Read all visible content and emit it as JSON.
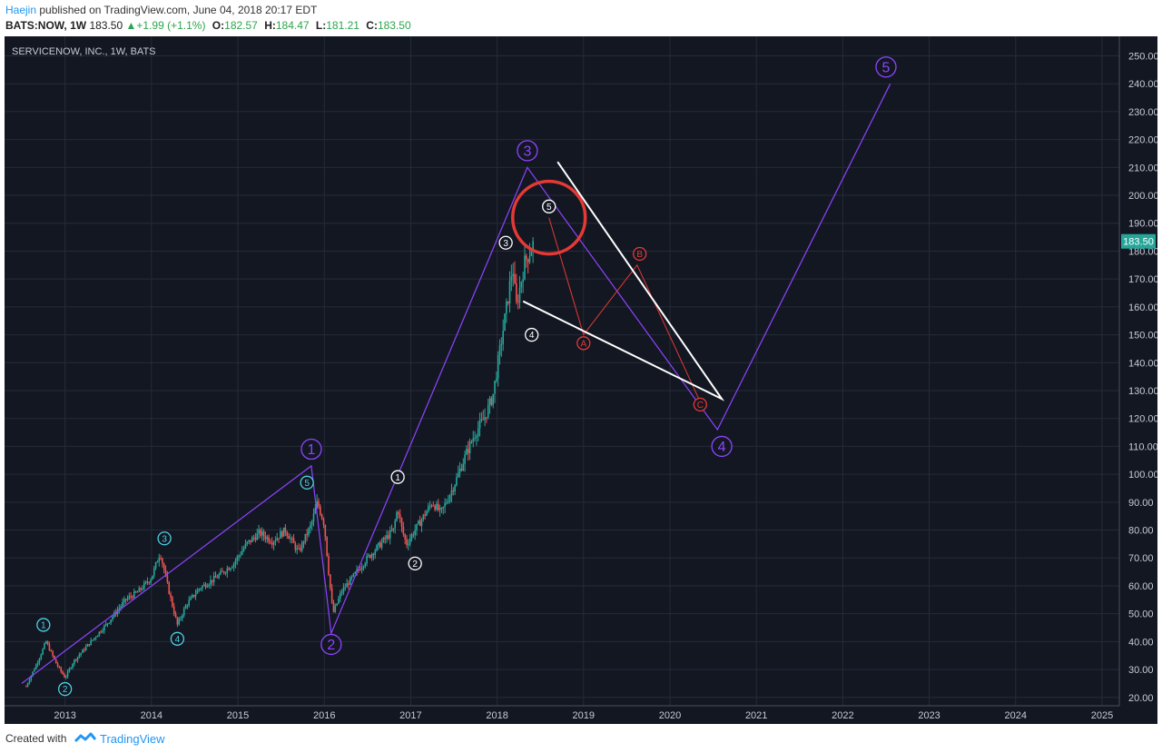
{
  "header": {
    "author": "Haejin",
    "published_text": " published on TradingView.com, June 04, 2018 20:17 EDT",
    "symbol": "BATS:NOW, 1W",
    "last": "183.50",
    "change": "+1.99 (+1.1%)",
    "open_label": "O:",
    "open": "182.57",
    "high_label": "H:",
    "high": "184.47",
    "low_label": "L:",
    "low": "181.21",
    "close_label": "C:",
    "close": "183.50"
  },
  "footer": {
    "created_with": "Created with",
    "brand": "TradingView"
  },
  "colors": {
    "background": "#131722",
    "grid": "#262b38",
    "axis_text": "#c8cbd3",
    "purple": "#8e44ff",
    "white": "#ffffff",
    "red": "#e53935",
    "cyan": "#4dd0e1",
    "candle_up": "#26a69a",
    "candle_down": "#ef5350",
    "price_tag": "#26a69a"
  },
  "chart_data": {
    "type": "candlestick",
    "title": "SERVICENOW, INC., 1W, BATS",
    "x_ticks": [
      "2013",
      "2014",
      "2015",
      "2016",
      "2017",
      "2018",
      "2019",
      "2020",
      "2021",
      "2022",
      "2023",
      "2024",
      "2025"
    ],
    "y_ticks": [
      20,
      30,
      40,
      50,
      60,
      70,
      80,
      90,
      100,
      110,
      120,
      130,
      140,
      150,
      160,
      170,
      180,
      190,
      200,
      210,
      220,
      230,
      240,
      250
    ],
    "ylim": [
      17,
      257
    ],
    "xlim": [
      2012.3,
      2025.2
    ],
    "last_price": "183.50",
    "price_path": [
      [
        2012.55,
        24
      ],
      [
        2012.7,
        34
      ],
      [
        2012.78,
        40
      ],
      [
        2012.9,
        32
      ],
      [
        2013.0,
        27
      ],
      [
        2013.1,
        33
      ],
      [
        2013.3,
        40
      ],
      [
        2013.5,
        47
      ],
      [
        2013.7,
        55
      ],
      [
        2013.85,
        58
      ],
      [
        2014.0,
        63
      ],
      [
        2014.1,
        72
      ],
      [
        2014.18,
        61
      ],
      [
        2014.25,
        52
      ],
      [
        2014.3,
        46
      ],
      [
        2014.4,
        53
      ],
      [
        2014.55,
        59
      ],
      [
        2014.75,
        63
      ],
      [
        2014.95,
        68
      ],
      [
        2015.1,
        75
      ],
      [
        2015.25,
        79
      ],
      [
        2015.4,
        76
      ],
      [
        2015.55,
        80
      ],
      [
        2015.7,
        72
      ],
      [
        2015.85,
        82
      ],
      [
        2015.92,
        90
      ],
      [
        2016.0,
        82
      ],
      [
        2016.05,
        65
      ],
      [
        2016.1,
        50
      ],
      [
        2016.2,
        58
      ],
      [
        2016.35,
        64
      ],
      [
        2016.5,
        70
      ],
      [
        2016.65,
        75
      ],
      [
        2016.8,
        80
      ],
      [
        2016.85,
        88
      ],
      [
        2016.9,
        80
      ],
      [
        2016.95,
        75
      ],
      [
        2017.05,
        80
      ],
      [
        2017.15,
        85
      ],
      [
        2017.25,
        90
      ],
      [
        2017.35,
        86
      ],
      [
        2017.5,
        96
      ],
      [
        2017.65,
        108
      ],
      [
        2017.75,
        115
      ],
      [
        2017.85,
        120
      ],
      [
        2017.95,
        128
      ],
      [
        2018.05,
        148
      ],
      [
        2018.12,
        162
      ],
      [
        2018.18,
        175
      ],
      [
        2018.22,
        160
      ],
      [
        2018.27,
        168
      ],
      [
        2018.32,
        176
      ],
      [
        2018.38,
        180
      ],
      [
        2018.43,
        183.5
      ]
    ],
    "series": [
      {
        "name": "",
        "points": [
          [
            2012.5,
            25
          ],
          [
            2015.85,
            103
          ],
          [
            2016.08,
            43
          ],
          [
            2018.35,
            210
          ],
          [
            2020.55,
            116
          ],
          [
            2022.55,
            240
          ]
        ]
      },
      {
        "name": "",
        "points": [
          [
            2018.6,
            192
          ],
          [
            2019.0,
            150
          ],
          [
            2019.62,
            175
          ],
          [
            2020.35,
            126
          ]
        ]
      },
      {
        "name": "",
        "points": [
          [
            2018.7,
            212
          ],
          [
            2020.6,
            127
          ],
          [
            2018.3,
            162
          ]
        ]
      }
    ],
    "wave_labels": [
      {
        "text": "1",
        "x": 2015.85,
        "y": 109,
        "group": "primary"
      },
      {
        "text": "2",
        "x": 2016.08,
        "y": 39,
        "group": "primary"
      },
      {
        "text": "3",
        "x": 2018.35,
        "y": 216,
        "group": "primary"
      },
      {
        "text": "4",
        "x": 2020.6,
        "y": 110,
        "group": "primary"
      },
      {
        "text": "5",
        "x": 2022.5,
        "y": 246,
        "group": "primary"
      },
      {
        "text": "1",
        "x": 2012.75,
        "y": 46,
        "group": "minor-cyan"
      },
      {
        "text": "2",
        "x": 2013.0,
        "y": 23,
        "group": "minor-cyan"
      },
      {
        "text": "3",
        "x": 2014.15,
        "y": 77,
        "group": "minor-cyan"
      },
      {
        "text": "4",
        "x": 2014.3,
        "y": 41,
        "group": "minor-cyan"
      },
      {
        "text": "5",
        "x": 2015.8,
        "y": 97,
        "group": "minor-cyan"
      },
      {
        "text": "1",
        "x": 2016.85,
        "y": 99,
        "group": "minor-white"
      },
      {
        "text": "2",
        "x": 2017.05,
        "y": 68,
        "group": "minor-white"
      },
      {
        "text": "3",
        "x": 2018.1,
        "y": 183,
        "group": "minor-white"
      },
      {
        "text": "4",
        "x": 2018.4,
        "y": 150,
        "group": "minor-white"
      },
      {
        "text": "5",
        "x": 2018.6,
        "y": 196,
        "group": "minor-white"
      },
      {
        "text": "A",
        "x": 2019.0,
        "y": 147,
        "group": "correction"
      },
      {
        "text": "B",
        "x": 2019.65,
        "y": 179,
        "group": "correction"
      },
      {
        "text": "C",
        "x": 2020.35,
        "y": 125,
        "group": "correction"
      }
    ],
    "highlight_circle": {
      "x": 2018.6,
      "y": 192
    }
  }
}
